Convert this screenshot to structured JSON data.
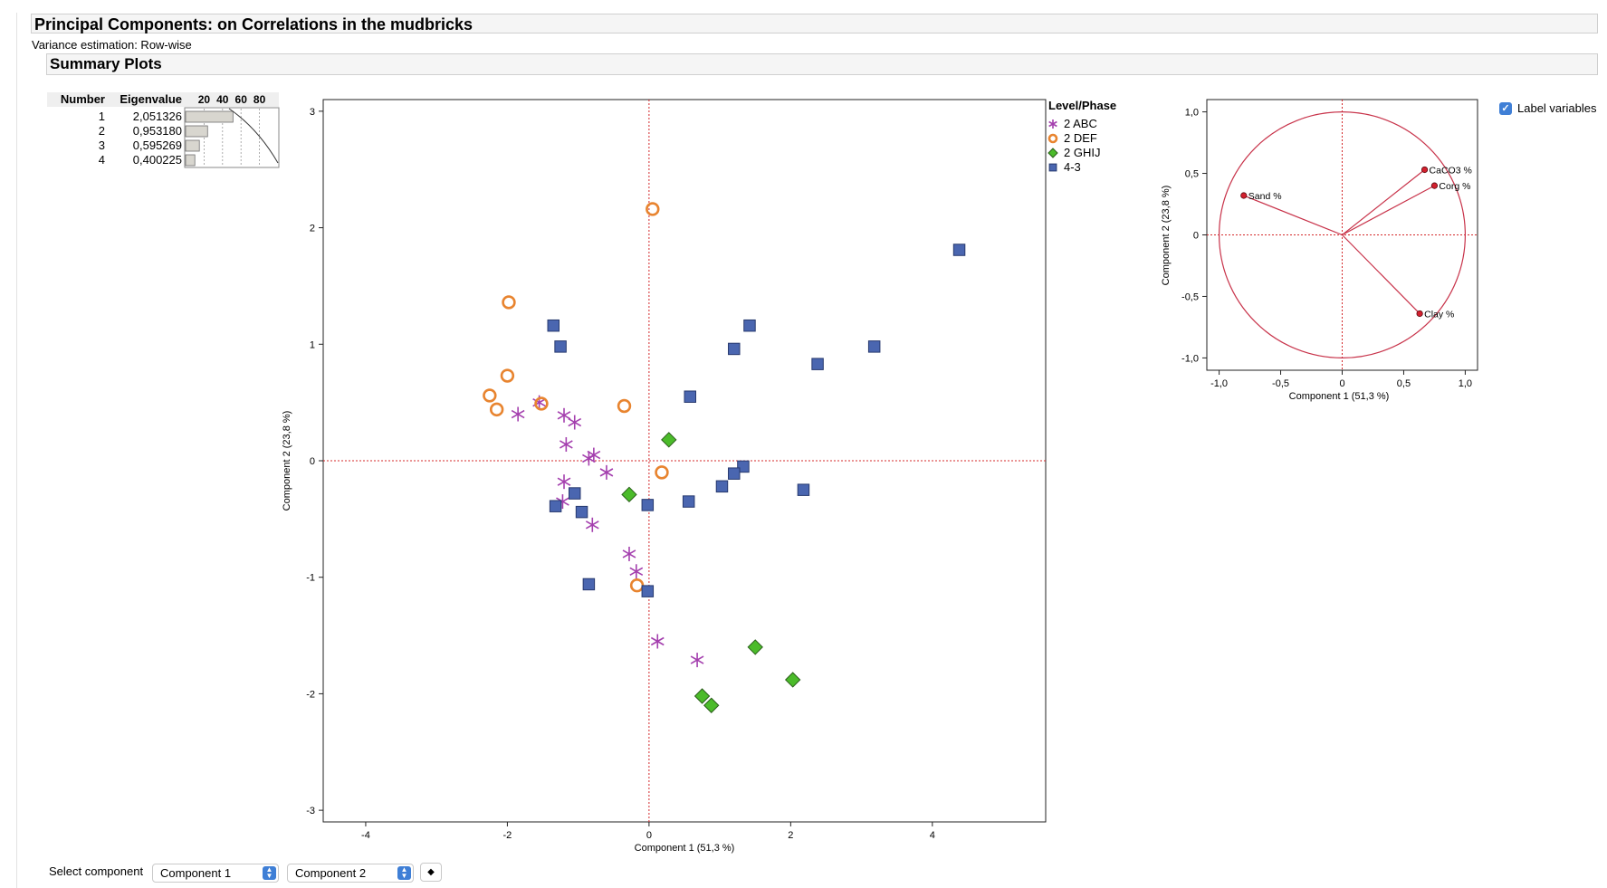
{
  "report": {
    "title": "Principal Components: on Correlations in the mudbricks",
    "subtitle": "Variance estimation: Row-wise",
    "summary_title": "Summary Plots"
  },
  "eigen_table": {
    "headers": {
      "number": "Number",
      "eigenvalue": "Eigenvalue"
    },
    "pct_ticks": [
      "20",
      "40",
      "60",
      "80"
    ],
    "rows": [
      {
        "number": "1",
        "value": "2,051326",
        "percent": 51.3
      },
      {
        "number": "2",
        "value": "0,953180",
        "percent": 23.8
      },
      {
        "number": "3",
        "value": "0,595269",
        "percent": 14.9
      },
      {
        "number": "4",
        "value": "0,400225",
        "percent": 10.0
      }
    ]
  },
  "colors": {
    "abc": "#a43fae",
    "def": "#e8842f",
    "ghij": "#4bbb2a",
    "g43": "#4a66b0",
    "ref_line": "#d4282a",
    "circle": "#c8334a"
  },
  "chart_data": [
    {
      "type": "scatter",
      "title": "",
      "xlabel": "Component 1  (51,3 %)",
      "ylabel": "Component 2  (23,8 %)",
      "xlim": [
        -4.6,
        5.6
      ],
      "ylim": [
        -3.1,
        3.1
      ],
      "xticks": [
        "-4",
        "-2",
        "0",
        "2",
        "4"
      ],
      "yticks": [
        "3",
        "2",
        "1",
        "0",
        "-1",
        "-2",
        "-3"
      ],
      "legend_title": "Level/Phase",
      "legend_position": "right",
      "series": [
        {
          "name": "2 ABC",
          "marker": "asterisk",
          "points": [
            [
              -1.85,
              0.4
            ],
            [
              -1.55,
              0.5
            ],
            [
              -1.2,
              0.39
            ],
            [
              -1.05,
              0.33
            ],
            [
              -1.17,
              0.14
            ],
            [
              -0.85,
              0.02
            ],
            [
              -0.78,
              0.05
            ],
            [
              -0.6,
              -0.1
            ],
            [
              -1.2,
              -0.18
            ],
            [
              -1.22,
              -0.35
            ],
            [
              -0.8,
              -0.55
            ],
            [
              -0.28,
              -0.8
            ],
            [
              -0.18,
              -0.95
            ],
            [
              0.12,
              -1.55
            ],
            [
              0.68,
              -1.71
            ]
          ]
        },
        {
          "name": "2 DEF",
          "marker": "circle",
          "points": [
            [
              0.05,
              2.16
            ],
            [
              -1.98,
              1.36
            ],
            [
              -2.0,
              0.73
            ],
            [
              -2.25,
              0.56
            ],
            [
              -2.15,
              0.44
            ],
            [
              -1.52,
              0.49
            ],
            [
              -0.35,
              0.47
            ],
            [
              0.18,
              -0.1
            ],
            [
              -0.17,
              -1.07
            ]
          ]
        },
        {
          "name": "2 GHIJ",
          "marker": "diamond",
          "points": [
            [
              0.28,
              0.18
            ],
            [
              -0.28,
              -0.29
            ],
            [
              1.5,
              -1.6
            ],
            [
              2.03,
              -1.88
            ],
            [
              0.75,
              -2.02
            ],
            [
              0.88,
              -2.1
            ]
          ]
        },
        {
          "name": "4-3",
          "marker": "square",
          "points": [
            [
              4.38,
              1.81
            ],
            [
              1.42,
              1.16
            ],
            [
              -1.35,
              1.16
            ],
            [
              -1.25,
              0.98
            ],
            [
              1.2,
              0.96
            ],
            [
              3.18,
              0.98
            ],
            [
              2.38,
              0.83
            ],
            [
              0.58,
              0.55
            ],
            [
              1.33,
              -0.05
            ],
            [
              1.2,
              -0.11
            ],
            [
              1.03,
              -0.22
            ],
            [
              2.18,
              -0.25
            ],
            [
              -1.05,
              -0.28
            ],
            [
              -1.32,
              -0.39
            ],
            [
              -0.95,
              -0.44
            ],
            [
              -0.02,
              -0.38
            ],
            [
              0.56,
              -0.35
            ],
            [
              -0.85,
              -1.06
            ],
            [
              -0.02,
              -1.12
            ]
          ]
        }
      ]
    },
    {
      "type": "scatter",
      "title": "",
      "xlabel": "Component 1  (51,3 %)",
      "ylabel": "Component 2  (23,8 %)",
      "xlim": [
        -1.1,
        1.1
      ],
      "ylim": [
        -1.1,
        1.1
      ],
      "xticks": [
        "-1,0",
        "-0,5",
        "0",
        "0,5",
        "1,0"
      ],
      "yticks": [
        "1,0",
        "0,5",
        "0",
        "-0,5",
        "-1,0"
      ],
      "unit_circle": true,
      "loadings": [
        {
          "label": "Sand %",
          "x": -0.8,
          "y": 0.32
        },
        {
          "label": "CaCO3 %",
          "x": 0.67,
          "y": 0.53
        },
        {
          "label": "Corg %",
          "x": 0.75,
          "y": 0.4
        },
        {
          "label": "Clay %",
          "x": 0.63,
          "y": -0.64
        }
      ]
    }
  ],
  "controls": {
    "label_variables": "Label variables",
    "select_component": "Select component",
    "component_x": "Component 1",
    "component_y": "Component 2"
  }
}
